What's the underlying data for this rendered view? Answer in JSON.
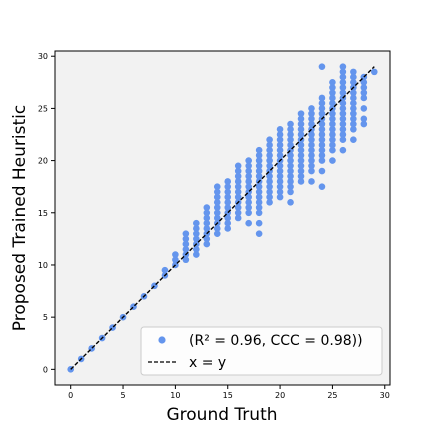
{
  "chart_data": {
    "type": "scatter",
    "title": "",
    "xlabel": "Ground Truth",
    "ylabel": "Proposed Trained Heuristic",
    "xlim": [
      -1.5,
      30.5
    ],
    "ylim": [
      -1.5,
      30.5
    ],
    "xticks": [
      0,
      5,
      10,
      15,
      20,
      25,
      30
    ],
    "yticks": [
      0,
      5,
      10,
      15,
      20,
      25,
      30
    ],
    "grid": false,
    "legend_position": "bottom-right",
    "background_color": "#f2f2f2",
    "series": [
      {
        "name": "(R² = 0.96, CCC = 0.98))",
        "kind": "points",
        "color": "#6495ed",
        "points": [
          [
            0,
            0
          ],
          [
            1,
            1
          ],
          [
            2,
            2
          ],
          [
            3,
            3
          ],
          [
            4,
            4
          ],
          [
            5,
            5
          ],
          [
            6,
            6
          ],
          [
            7,
            7
          ],
          [
            8,
            8
          ],
          [
            9,
            9
          ],
          [
            9,
            9.5
          ],
          [
            10,
            10
          ],
          [
            10,
            10.5
          ],
          [
            10,
            11
          ],
          [
            11,
            10.5
          ],
          [
            11,
            11
          ],
          [
            11,
            11.5
          ],
          [
            11,
            12
          ],
          [
            11,
            12.5
          ],
          [
            11,
            13
          ],
          [
            12,
            11
          ],
          [
            12,
            11.5
          ],
          [
            12,
            12
          ],
          [
            12,
            12.5
          ],
          [
            12,
            13
          ],
          [
            12,
            13.5
          ],
          [
            12,
            14
          ],
          [
            13,
            12
          ],
          [
            13,
            12.5
          ],
          [
            13,
            13
          ],
          [
            13,
            13.5
          ],
          [
            13,
            14
          ],
          [
            13,
            14.5
          ],
          [
            13,
            15
          ],
          [
            13,
            15.5
          ],
          [
            14,
            13
          ],
          [
            14,
            13.5
          ],
          [
            14,
            14
          ],
          [
            14,
            14.5
          ],
          [
            14,
            15
          ],
          [
            14,
            15.5
          ],
          [
            14,
            16
          ],
          [
            14,
            16.5
          ],
          [
            14,
            17
          ],
          [
            14,
            17.5
          ],
          [
            15,
            13.5
          ],
          [
            15,
            14
          ],
          [
            15,
            14.5
          ],
          [
            15,
            15
          ],
          [
            15,
            15.5
          ],
          [
            15,
            16
          ],
          [
            15,
            16.5
          ],
          [
            15,
            17
          ],
          [
            15,
            17.5
          ],
          [
            15,
            18
          ],
          [
            16,
            14.5
          ],
          [
            16,
            15
          ],
          [
            16,
            15.5
          ],
          [
            16,
            16
          ],
          [
            16,
            16.5
          ],
          [
            16,
            17
          ],
          [
            16,
            17.5
          ],
          [
            16,
            18
          ],
          [
            16,
            18.5
          ],
          [
            16,
            19
          ],
          [
            16,
            19.5
          ],
          [
            17,
            14
          ],
          [
            17,
            15
          ],
          [
            17,
            15.5
          ],
          [
            17,
            16
          ],
          [
            17,
            16.5
          ],
          [
            17,
            17
          ],
          [
            17,
            17.5
          ],
          [
            17,
            18
          ],
          [
            17,
            18.5
          ],
          [
            17,
            19
          ],
          [
            17,
            19.5
          ],
          [
            17,
            20
          ],
          [
            18,
            13
          ],
          [
            18,
            14
          ],
          [
            18,
            15
          ],
          [
            18,
            15.5
          ],
          [
            18,
            16
          ],
          [
            18,
            16.5
          ],
          [
            18,
            17
          ],
          [
            18,
            17.5
          ],
          [
            18,
            18
          ],
          [
            18,
            18.5
          ],
          [
            18,
            19
          ],
          [
            18,
            19.5
          ],
          [
            18,
            20
          ],
          [
            18,
            20.5
          ],
          [
            18,
            21
          ],
          [
            19,
            16
          ],
          [
            19,
            16.5
          ],
          [
            19,
            17
          ],
          [
            19,
            17.5
          ],
          [
            19,
            18
          ],
          [
            19,
            18.5
          ],
          [
            19,
            19
          ],
          [
            19,
            19.5
          ],
          [
            19,
            20
          ],
          [
            19,
            20.5
          ],
          [
            19,
            21
          ],
          [
            19,
            21.5
          ],
          [
            19,
            22
          ],
          [
            20,
            16.5
          ],
          [
            20,
            17
          ],
          [
            20,
            17.5
          ],
          [
            20,
            18
          ],
          [
            20,
            18.5
          ],
          [
            20,
            19
          ],
          [
            20,
            19.5
          ],
          [
            20,
            20
          ],
          [
            20,
            20.5
          ],
          [
            20,
            21
          ],
          [
            20,
            21.5
          ],
          [
            20,
            22
          ],
          [
            20,
            22.5
          ],
          [
            20,
            23
          ],
          [
            21,
            16
          ],
          [
            21,
            17
          ],
          [
            21,
            17.5
          ],
          [
            21,
            18
          ],
          [
            21,
            18.5
          ],
          [
            21,
            19
          ],
          [
            21,
            19.5
          ],
          [
            21,
            20
          ],
          [
            21,
            20.5
          ],
          [
            21,
            21
          ],
          [
            21,
            21.5
          ],
          [
            21,
            22
          ],
          [
            21,
            22.5
          ],
          [
            21,
            23
          ],
          [
            21,
            23.5
          ],
          [
            22,
            18
          ],
          [
            22,
            18.5
          ],
          [
            22,
            19
          ],
          [
            22,
            19.5
          ],
          [
            22,
            20
          ],
          [
            22,
            20.5
          ],
          [
            22,
            21
          ],
          [
            22,
            21.5
          ],
          [
            22,
            22
          ],
          [
            22,
            22.5
          ],
          [
            22,
            23
          ],
          [
            22,
            23.5
          ],
          [
            22,
            24
          ],
          [
            22,
            24.5
          ],
          [
            23,
            18
          ],
          [
            23,
            19
          ],
          [
            23,
            19.5
          ],
          [
            23,
            20
          ],
          [
            23,
            20.5
          ],
          [
            23,
            21
          ],
          [
            23,
            21.5
          ],
          [
            23,
            22
          ],
          [
            23,
            22.5
          ],
          [
            23,
            23
          ],
          [
            23,
            23.5
          ],
          [
            23,
            24
          ],
          [
            23,
            24.5
          ],
          [
            23,
            25
          ],
          [
            24,
            17.5
          ],
          [
            24,
            19
          ],
          [
            24,
            20
          ],
          [
            24,
            20.5
          ],
          [
            24,
            21
          ],
          [
            24,
            21.5
          ],
          [
            24,
            22
          ],
          [
            24,
            22.5
          ],
          [
            24,
            23
          ],
          [
            24,
            23.5
          ],
          [
            24,
            24
          ],
          [
            24,
            24.5
          ],
          [
            24,
            25
          ],
          [
            24,
            25.5
          ],
          [
            24,
            26
          ],
          [
            24,
            29
          ],
          [
            25,
            20
          ],
          [
            25,
            21
          ],
          [
            25,
            21.5
          ],
          [
            25,
            22
          ],
          [
            25,
            22.5
          ],
          [
            25,
            23
          ],
          [
            25,
            23.5
          ],
          [
            25,
            24
          ],
          [
            25,
            24.5
          ],
          [
            25,
            25
          ],
          [
            25,
            25.5
          ],
          [
            25,
            26
          ],
          [
            25,
            26.5
          ],
          [
            25,
            27
          ],
          [
            25,
            27.5
          ],
          [
            26,
            21
          ],
          [
            26,
            22
          ],
          [
            26,
            22.5
          ],
          [
            26,
            23
          ],
          [
            26,
            23.5
          ],
          [
            26,
            24
          ],
          [
            26,
            24.5
          ],
          [
            26,
            25
          ],
          [
            26,
            25.5
          ],
          [
            26,
            26
          ],
          [
            26,
            26.5
          ],
          [
            26,
            27
          ],
          [
            26,
            27.5
          ],
          [
            26,
            28
          ],
          [
            26,
            28.5
          ],
          [
            26,
            29
          ],
          [
            27,
            22
          ],
          [
            27,
            23
          ],
          [
            27,
            23.5
          ],
          [
            27,
            24
          ],
          [
            27,
            24.5
          ],
          [
            27,
            25
          ],
          [
            27,
            25.5
          ],
          [
            27,
            26
          ],
          [
            27,
            26.5
          ],
          [
            27,
            27
          ],
          [
            27,
            27.5
          ],
          [
            27,
            28
          ],
          [
            27,
            28.5
          ],
          [
            28,
            23.5
          ],
          [
            28,
            24
          ],
          [
            28,
            25
          ],
          [
            28,
            26
          ],
          [
            28,
            26.5
          ],
          [
            28,
            27
          ],
          [
            28,
            27.5
          ],
          [
            28,
            28
          ],
          [
            29,
            28.5
          ]
        ]
      },
      {
        "name": "x = y",
        "kind": "line",
        "color": "#000000",
        "dash": "dashed",
        "points": [
          [
            0,
            0
          ],
          [
            29,
            29
          ]
        ]
      }
    ]
  }
}
